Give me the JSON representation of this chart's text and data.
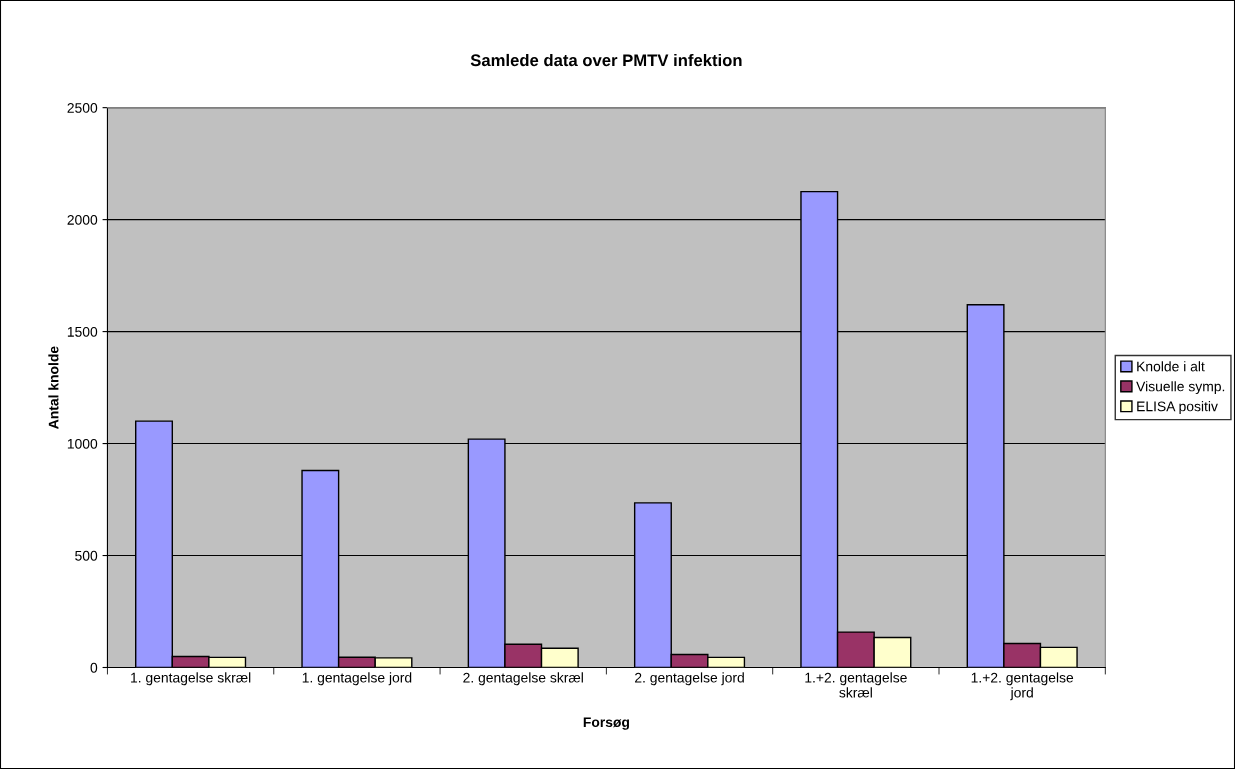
{
  "chart_data": {
    "type": "bar",
    "title": "Samlede data over PMTV infektion",
    "xlabel": "Forsøg",
    "ylabel": "Antal knolde",
    "categories": [
      "1. gentagelse skræl",
      "1. gentagelse jord",
      "2. gentagelse skræl",
      "2. gentagelse jord",
      "1.+2. gentagelse\nskræl",
      "1.+2. gentagelse\njord"
    ],
    "series": [
      {
        "name": "Knolde i alt",
        "color": "#9999ff",
        "values": [
          1100,
          880,
          1020,
          735,
          2125,
          1620
        ]
      },
      {
        "name": "Visuelle symp.",
        "color": "#993366",
        "values": [
          49,
          46,
          104,
          58,
          158,
          107
        ]
      },
      {
        "name": "ELISA positiv",
        "color": "#ffffcc",
        "values": [
          45,
          43,
          86,
          45,
          134,
          90
        ]
      }
    ],
    "ylim": [
      0,
      2500
    ],
    "yticks": [
      0,
      500,
      1000,
      1500,
      2000,
      2500
    ],
    "grid": "y",
    "legend": "right"
  }
}
